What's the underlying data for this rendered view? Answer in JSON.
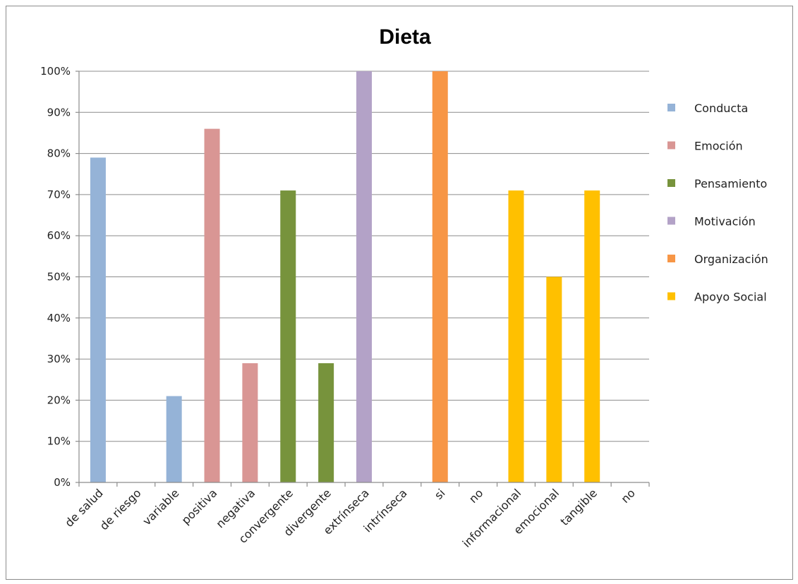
{
  "chart_data": {
    "type": "bar",
    "title": "Dieta",
    "xlabel": "",
    "ylabel": "",
    "ylim": [
      0,
      100
    ],
    "yticks": [
      "0%",
      "10%",
      "20%",
      "30%",
      "40%",
      "50%",
      "60%",
      "70%",
      "80%",
      "90%",
      "100%"
    ],
    "grid": true,
    "legend_position": "right",
    "categories": [
      "de salud",
      "de riesgo",
      "variable",
      "positiva",
      "negativa",
      "convergente",
      "divergente",
      "extrínseca",
      "intrínseca",
      "si",
      "no",
      "informacional",
      "emocional",
      "tangible",
      "no"
    ],
    "series": [
      {
        "name": "Conducta",
        "color": "#95B3D7",
        "values": [
          79,
          0,
          21,
          null,
          null,
          null,
          null,
          null,
          null,
          null,
          null,
          null,
          null,
          null,
          null
        ]
      },
      {
        "name": "Emoción",
        "color": "#D99694",
        "values": [
          null,
          null,
          null,
          86,
          29,
          null,
          null,
          null,
          null,
          null,
          null,
          null,
          null,
          null,
          null
        ]
      },
      {
        "name": "Pensamiento",
        "color": "#77933C",
        "values": [
          null,
          null,
          null,
          null,
          null,
          71,
          29,
          null,
          null,
          null,
          null,
          null,
          null,
          null,
          null
        ]
      },
      {
        "name": "Motivación",
        "color": "#B3A2C7",
        "values": [
          null,
          null,
          null,
          null,
          null,
          null,
          null,
          100,
          0,
          null,
          null,
          null,
          null,
          null,
          null
        ]
      },
      {
        "name": "Organización",
        "color": "#F79646",
        "values": [
          null,
          null,
          null,
          null,
          null,
          null,
          null,
          null,
          null,
          100,
          0,
          null,
          null,
          null,
          null
        ]
      },
      {
        "name": "Apoyo Social",
        "color": "#FFC000",
        "values": [
          null,
          null,
          null,
          null,
          null,
          null,
          null,
          null,
          null,
          null,
          null,
          71,
          50,
          71,
          0
        ]
      }
    ]
  }
}
